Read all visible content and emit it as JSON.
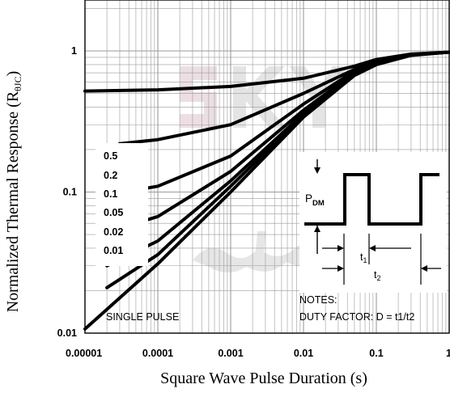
{
  "chart_data": {
    "type": "line",
    "title": "",
    "xlabel": "Square Wave Pulse Duration (s)",
    "ylabel_main": "Normalized Thermal Response (R",
    "ylabel_sub": "θJC",
    "ylabel_close": ")",
    "x_scale": "log",
    "y_scale": "log",
    "xlim": [
      1e-05,
      1
    ],
    "ylim": [
      0.01,
      2
    ],
    "x_ticks": [
      {
        "value": 1e-05,
        "label": "0.00001"
      },
      {
        "value": 0.0001,
        "label": "0.0001"
      },
      {
        "value": 0.001,
        "label": "0.001"
      },
      {
        "value": 0.01,
        "label": "0.01"
      },
      {
        "value": 0.1,
        "label": "0.1"
      },
      {
        "value": 1,
        "label": "1"
      }
    ],
    "y_ticks": [
      {
        "value": 0.01,
        "label": "0.01"
      },
      {
        "value": 0.1,
        "label": "0.1"
      },
      {
        "value": 1,
        "label": "1"
      }
    ],
    "grid": true,
    "legend_entries": [
      "0.5",
      "0.2",
      "0.1",
      "0.05",
      "0.02",
      "0.01"
    ],
    "series": [
      {
        "name": "0.5",
        "x": [
          1e-05,
          0.0001,
          0.001,
          0.01,
          0.05,
          0.1,
          0.3,
          1
        ],
        "y": [
          0.52,
          0.53,
          0.56,
          0.64,
          0.78,
          0.87,
          0.95,
          0.98
        ]
      },
      {
        "name": "0.2",
        "x": [
          3e-05,
          0.0001,
          0.001,
          0.01,
          0.05,
          0.1,
          0.3,
          1
        ],
        "y": [
          0.22,
          0.235,
          0.3,
          0.5,
          0.74,
          0.84,
          0.94,
          0.98
        ]
      },
      {
        "name": "0.1",
        "x": [
          2e-05,
          0.0001,
          0.001,
          0.01,
          0.05,
          0.1,
          0.3,
          1
        ],
        "y": [
          0.095,
          0.11,
          0.18,
          0.42,
          0.72,
          0.83,
          0.94,
          0.98
        ]
      },
      {
        "name": "0.05",
        "x": [
          2e-05,
          0.0001,
          0.001,
          0.01,
          0.05,
          0.1,
          0.3,
          1
        ],
        "y": [
          0.052,
          0.067,
          0.14,
          0.38,
          0.7,
          0.82,
          0.94,
          0.98
        ]
      },
      {
        "name": "0.02",
        "x": [
          2e-05,
          0.0001,
          0.001,
          0.01,
          0.05,
          0.1,
          0.3,
          1
        ],
        "y": [
          0.03,
          0.045,
          0.12,
          0.36,
          0.69,
          0.82,
          0.94,
          0.98
        ]
      },
      {
        "name": "0.01",
        "x": [
          2e-05,
          0.0001,
          0.001,
          0.01,
          0.05,
          0.1,
          0.3,
          1
        ],
        "y": [
          0.021,
          0.036,
          0.11,
          0.35,
          0.68,
          0.81,
          0.94,
          0.98
        ]
      },
      {
        "name": "SINGLE PULSE",
        "x": [
          1e-05,
          0.0001,
          0.001,
          0.01,
          0.05,
          0.1,
          0.3,
          1
        ],
        "y": [
          0.0107,
          0.031,
          0.1,
          0.34,
          0.67,
          0.8,
          0.93,
          0.98
        ]
      }
    ],
    "annotations": {
      "single_pulse": "SINGLE PULSE",
      "notes_title": "NOTES:",
      "duty_factor": "DUTY FACTOR: D = t1/t2",
      "pdm_main": "P",
      "pdm_sub": "DM",
      "t1_main": "t",
      "t1_sub": "1",
      "t2_main": "t",
      "t2_sub": "2"
    },
    "colors": {
      "curve": "#000000",
      "grid": "#9a9a9a",
      "watermark_gray": "#e2e2e2",
      "watermark_pink": "#ecdfe3"
    }
  }
}
